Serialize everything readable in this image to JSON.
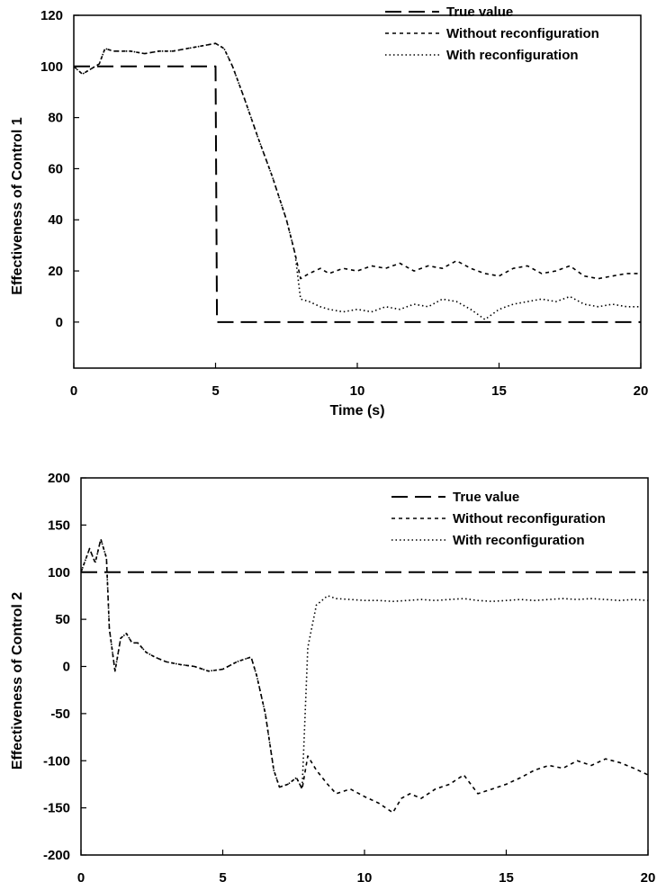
{
  "colors": {
    "line": "#000000",
    "background": "#ffffff"
  },
  "chart_data": [
    {
      "type": "line",
      "title": "",
      "xlabel": "Time (s)",
      "ylabel": "Effectiveness of Control 1",
      "xlim": [
        0,
        20
      ],
      "ylim": [
        -18,
        120
      ],
      "xticks": [
        0,
        5,
        10,
        15,
        20
      ],
      "yticks": [
        0,
        20,
        40,
        60,
        80,
        100,
        120
      ],
      "grid": false,
      "legend": "top-right",
      "series": [
        {
          "name": "True value",
          "style": "long-dash",
          "x": [
            0,
            5,
            5.05,
            20
          ],
          "y": [
            100,
            100,
            0,
            0
          ]
        },
        {
          "name": "Without reconfiguration",
          "style": "dashed",
          "x": [
            0,
            0.3,
            0.6,
            0.9,
            1.1,
            1.4,
            2,
            2.5,
            3,
            3.5,
            4,
            4.5,
            5,
            5.3,
            5.6,
            6,
            6.5,
            7,
            7.5,
            7.8,
            8.0,
            8.3,
            8.7,
            9,
            9.5,
            10,
            10.5,
            11,
            11.5,
            12,
            12.5,
            13,
            13.5,
            14,
            14.5,
            15,
            15.5,
            16,
            16.5,
            17,
            17.5,
            18,
            18.5,
            19,
            19.5,
            20
          ],
          "y": [
            100,
            97,
            99,
            101,
            107,
            106,
            106,
            105,
            106,
            106,
            107,
            108,
            109,
            107,
            100,
            88,
            72,
            57,
            40,
            27,
            17,
            19,
            21,
            19,
            21,
            20,
            22,
            21,
            23,
            20,
            22,
            21,
            24,
            21,
            19,
            18,
            21,
            22,
            19,
            20,
            22,
            18,
            17,
            18,
            19,
            19
          ]
        },
        {
          "name": "With reconfiguration",
          "style": "dotted",
          "x": [
            0,
            0.3,
            0.6,
            0.9,
            1.1,
            1.4,
            2,
            2.5,
            3,
            3.5,
            4,
            4.5,
            5,
            5.3,
            5.6,
            6,
            6.5,
            7,
            7.5,
            7.8,
            8.0,
            8.3,
            8.7,
            9,
            9.5,
            10,
            10.5,
            11,
            11.5,
            12,
            12.5,
            13,
            13.5,
            14,
            14.5,
            15,
            15.5,
            16,
            16.5,
            17,
            17.5,
            18,
            18.5,
            19,
            19.5,
            20
          ],
          "y": [
            100,
            97,
            99,
            101,
            107,
            106,
            106,
            105,
            106,
            106,
            107,
            108,
            109,
            107,
            100,
            88,
            72,
            57,
            40,
            27,
            9,
            8,
            6,
            5,
            4,
            5,
            4,
            6,
            5,
            7,
            6,
            9,
            8,
            5,
            1,
            5,
            7,
            8,
            9,
            8,
            10,
            7,
            6,
            7,
            6,
            6
          ]
        }
      ]
    },
    {
      "type": "line",
      "title": "",
      "xlabel": "Time (s)",
      "ylabel": "Effectiveness of Control 2",
      "xlim": [
        0,
        20
      ],
      "ylim": [
        -200,
        200
      ],
      "xticks": [
        0,
        5,
        10,
        15,
        20
      ],
      "yticks": [
        -200,
        -150,
        -100,
        -50,
        0,
        50,
        100,
        150,
        200
      ],
      "grid": false,
      "legend": "top-right",
      "series": [
        {
          "name": "True value",
          "style": "long-dash",
          "x": [
            0,
            20
          ],
          "y": [
            100,
            100
          ]
        },
        {
          "name": "Without reconfiguration",
          "style": "dashed",
          "x": [
            0,
            0.3,
            0.5,
            0.7,
            0.9,
            1.0,
            1.2,
            1.4,
            1.6,
            1.8,
            2,
            2.3,
            2.6,
            3,
            3.5,
            4,
            4.5,
            5,
            5.5,
            6,
            6.2,
            6.5,
            6.8,
            7,
            7.3,
            7.6,
            7.8,
            8.0,
            8.3,
            8.7,
            9,
            9.5,
            10,
            10.5,
            11,
            11.3,
            11.6,
            12,
            12.5,
            13,
            13.5,
            14,
            14.5,
            15,
            15.5,
            16,
            16.5,
            17,
            17.5,
            18,
            18.5,
            19,
            19.5,
            20
          ],
          "y": [
            100,
            125,
            110,
            135,
            115,
            40,
            -5,
            30,
            35,
            25,
            25,
            15,
            10,
            5,
            2,
            0,
            -5,
            -3,
            5,
            10,
            -10,
            -50,
            -110,
            -128,
            -125,
            -118,
            -130,
            -95,
            -110,
            -125,
            -135,
            -130,
            -138,
            -145,
            -155,
            -140,
            -135,
            -140,
            -130,
            -125,
            -115,
            -135,
            -130,
            -125,
            -118,
            -110,
            -105,
            -108,
            -100,
            -105,
            -98,
            -102,
            -108,
            -115
          ]
        },
        {
          "name": "With reconfiguration",
          "style": "dotted",
          "x": [
            0,
            0.3,
            0.5,
            0.7,
            0.9,
            1.0,
            1.2,
            1.4,
            1.6,
            1.8,
            2,
            2.3,
            2.6,
            3,
            3.5,
            4,
            4.5,
            5,
            5.5,
            6,
            6.2,
            6.5,
            6.8,
            7,
            7.3,
            7.6,
            7.8,
            8.0,
            8.3,
            8.7,
            9,
            9.5,
            10,
            10.5,
            11,
            11.5,
            12,
            12.5,
            13,
            13.5,
            14,
            14.5,
            15,
            15.5,
            16,
            16.5,
            17,
            17.5,
            18,
            18.5,
            19,
            19.5,
            20
          ],
          "y": [
            100,
            125,
            110,
            135,
            115,
            40,
            -5,
            30,
            35,
            25,
            25,
            15,
            10,
            5,
            2,
            0,
            -5,
            -3,
            5,
            10,
            -10,
            -50,
            -110,
            -128,
            -125,
            -118,
            -130,
            20,
            65,
            75,
            72,
            71,
            70,
            70,
            69,
            70,
            71,
            70,
            71,
            72,
            70,
            69,
            70,
            71,
            70,
            71,
            72,
            71,
            72,
            71,
            70,
            71,
            70
          ]
        }
      ]
    }
  ]
}
